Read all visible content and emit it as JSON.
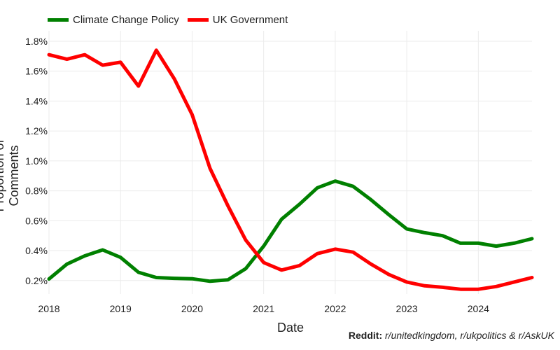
{
  "chart_data": {
    "type": "line",
    "xlabel": "Date",
    "ylabel": "Proportion of Comments",
    "legend_position": "top-left",
    "grid": true,
    "xlim": [
      2018,
      2024.75
    ],
    "ylim": [
      0.0011,
      0.0187
    ],
    "x_ticks": [
      2018,
      2019,
      2020,
      2021,
      2022,
      2023,
      2024
    ],
    "x_tick_labels": [
      "2018",
      "2019",
      "2020",
      "2021",
      "2022",
      "2023",
      "2024"
    ],
    "y_ticks": [
      0.002,
      0.004,
      0.006,
      0.008,
      0.01,
      0.012,
      0.014,
      0.016,
      0.018
    ],
    "y_tick_labels": [
      "0.2%",
      "0.4%",
      "0.6%",
      "0.8%",
      "1.0%",
      "1.2%",
      "1.4%",
      "1.6%",
      "1.8%"
    ],
    "x": [
      2018,
      2018.25,
      2018.5,
      2018.75,
      2019,
      2019.25,
      2019.5,
      2019.75,
      2020,
      2020.25,
      2020.5,
      2020.75,
      2021,
      2021.25,
      2021.5,
      2021.75,
      2022,
      2022.25,
      2022.5,
      2022.75,
      2023,
      2023.25,
      2023.5,
      2023.75,
      2024,
      2024.25,
      2024.5,
      2024.75
    ],
    "series": [
      {
        "name": "Climate Change Policy",
        "color": "#008000",
        "values": [
          0.0021,
          0.0031,
          0.00365,
          0.00405,
          0.00355,
          0.00255,
          0.0022,
          0.00215,
          0.00212,
          0.00195,
          0.00205,
          0.0028,
          0.0043,
          0.0061,
          0.0071,
          0.0082,
          0.00865,
          0.0083,
          0.0074,
          0.0064,
          0.00545,
          0.0052,
          0.005,
          0.0045,
          0.0045,
          0.0043,
          0.0045,
          0.0048
        ]
      },
      {
        "name": "UK Government",
        "color": "#ff0000",
        "values": [
          0.0171,
          0.0168,
          0.0171,
          0.0164,
          0.0166,
          0.015,
          0.0174,
          0.0155,
          0.0131,
          0.0095,
          0.007,
          0.0047,
          0.0032,
          0.0027,
          0.003,
          0.0038,
          0.0041,
          0.0039,
          0.0031,
          0.0024,
          0.0019,
          0.00165,
          0.00155,
          0.00142,
          0.00142,
          0.0016,
          0.0019,
          0.0022
        ]
      }
    ]
  },
  "source": {
    "label": "Reddit:",
    "text": "r/unitedkingdom, r/ukpolitics & r/AskUK"
  }
}
